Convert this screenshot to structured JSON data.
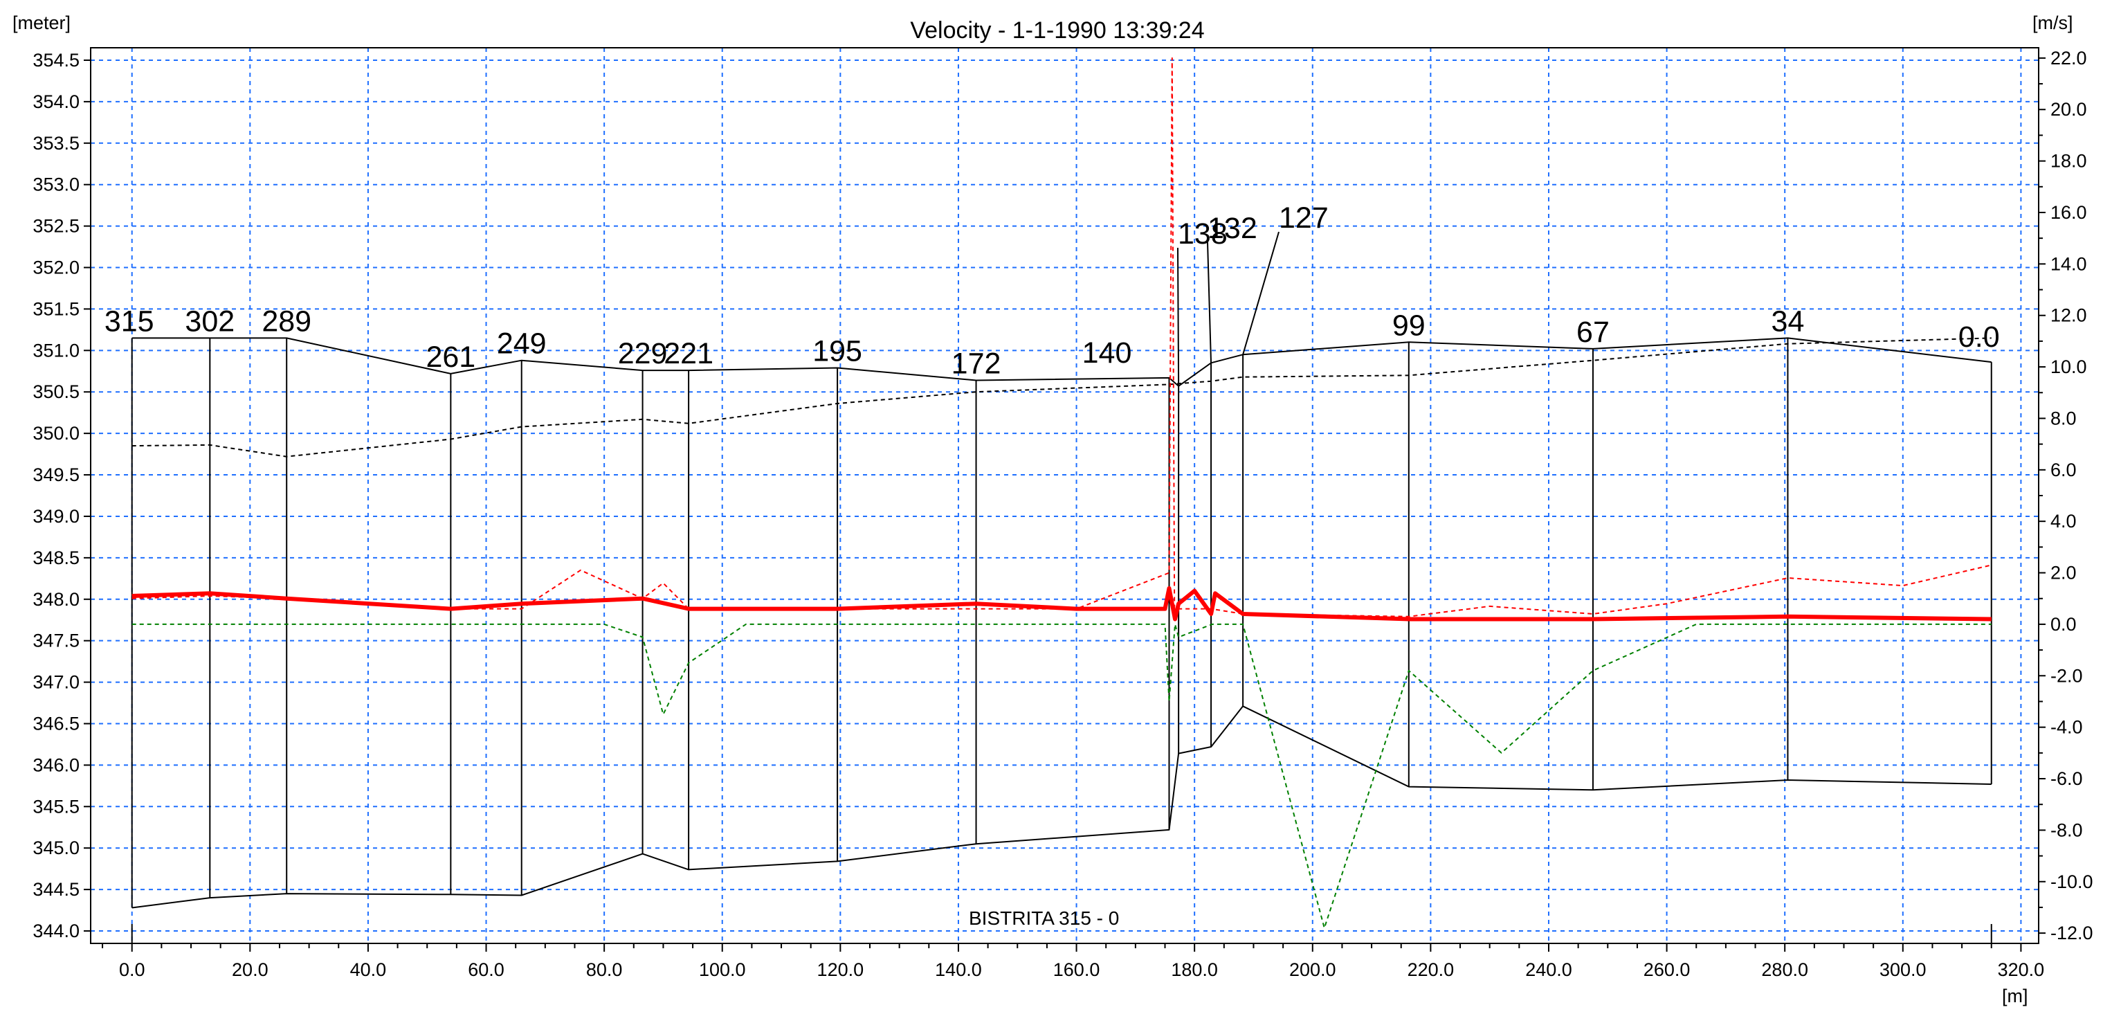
{
  "chart_data": {
    "type": "line",
    "title": "Velocity - 1-1-1990 13:39:24",
    "ylabel_left": "[meter]",
    "ylabel_right": "[m/s]",
    "xlabel": "[m]",
    "river_label": "BISTRITA  315 - 0",
    "xlim": [
      -7,
      323
    ],
    "ylim_left": [
      343.85,
      354.65
    ],
    "ylim_right": [
      -12.4,
      22.4
    ],
    "x_ticks": [
      0,
      20,
      40,
      60,
      80,
      100,
      120,
      140,
      160,
      180,
      200,
      220,
      240,
      260,
      280,
      300,
      320
    ],
    "x_tick_labels": [
      "0.0",
      "20.0",
      "40.0",
      "60.0",
      "80.0",
      "100.0",
      "120.0",
      "140.0",
      "160.0",
      "180.0",
      "200.0",
      "220.0",
      "240.0",
      "260.0",
      "280.0",
      "300.0",
      "320.0"
    ],
    "y_left_ticks": [
      344.0,
      344.5,
      345.0,
      345.5,
      346.0,
      346.5,
      347.0,
      347.5,
      348.0,
      348.5,
      349.0,
      349.5,
      350.0,
      350.5,
      351.0,
      351.5,
      352.0,
      352.5,
      353.0,
      353.5,
      354.0,
      354.5
    ],
    "y_left_tick_labels": [
      "344.0",
      "344.5",
      "345.0",
      "345.5",
      "346.0",
      "346.5",
      "347.0",
      "347.5",
      "348.0",
      "348.5",
      "349.0",
      "349.5",
      "350.0",
      "350.5",
      "351.0",
      "351.5",
      "352.0",
      "352.5",
      "353.0",
      "353.5",
      "354.0",
      "354.5"
    ],
    "y_right_ticks": [
      -12,
      -10,
      -8,
      -6,
      -4,
      -2,
      0,
      2,
      4,
      6,
      8,
      10,
      12,
      14,
      16,
      18,
      20,
      22
    ],
    "y_right_tick_labels": [
      "-12.0",
      "-10.0",
      "-8.0",
      "-6.0",
      "-4.0",
      "-2.0",
      "0.0",
      "2.0",
      "4.0",
      "6.0",
      "8.0",
      "10.0",
      "12.0",
      "14.0",
      "16.0",
      "18.0",
      "20.0",
      "22.0"
    ],
    "grid": true,
    "cross_sections": [
      {
        "label": "315",
        "x": 0,
        "top": 351.15,
        "bottom": 344.28
      },
      {
        "label": "302",
        "x": 13.2,
        "top": 351.15,
        "bottom": 344.4
      },
      {
        "label": "289",
        "x": 26.2,
        "top": 351.15,
        "bottom": 344.45
      },
      {
        "label": "261",
        "x": 54,
        "top": 350.72,
        "bottom": 344.44
      },
      {
        "label": "249",
        "x": 66,
        "top": 350.88,
        "bottom": 344.43
      },
      {
        "label": "229",
        "x": 86.5,
        "top": 350.76,
        "bottom": 344.93
      },
      {
        "label": "221",
        "x": 94.3,
        "top": 350.76,
        "bottom": 344.74
      },
      {
        "label": "195",
        "x": 119.5,
        "top": 350.79,
        "bottom": 344.84
      },
      {
        "label": "172",
        "x": 143,
        "top": 350.64,
        "bottom": 345.05
      },
      {
        "label": "140",
        "x": 175.7,
        "top": 350.67,
        "bottom": 345.22
      },
      {
        "label": "138",
        "x": 177.3,
        "top": 350.57,
        "bottom": 346.14
      },
      {
        "label": "132",
        "x": 182.8,
        "top": 350.85,
        "bottom": 346.22
      },
      {
        "label": "127",
        "x": 188.2,
        "top": 350.95,
        "bottom": 346.71
      },
      {
        "label": "99",
        "x": 216.3,
        "top": 351.1,
        "bottom": 345.74
      },
      {
        "label": "67",
        "x": 247.5,
        "top": 351.02,
        "bottom": 345.7
      },
      {
        "label": "34",
        "x": 280.5,
        "top": 351.15,
        "bottom": 345.82
      },
      {
        "label": "0.0",
        "x": 315,
        "top": 350.86,
        "bottom": 345.77
      }
    ],
    "series": [
      {
        "name": "bank_level",
        "axis": "left",
        "color": "#000000",
        "style": "solid",
        "x": [
          0,
          26.2,
          54,
          66,
          86.5,
          94.3,
          119.5,
          143,
          175.7,
          177.3,
          182.8,
          188.2,
          216.3,
          247.5,
          280.5,
          315
        ],
        "y": [
          351.15,
          351.15,
          350.72,
          350.88,
          350.76,
          350.76,
          350.79,
          350.64,
          350.67,
          350.57,
          350.85,
          350.95,
          351.1,
          351.02,
          351.15,
          350.86
        ]
      },
      {
        "name": "bed_level",
        "axis": "left",
        "color": "#000000",
        "style": "solid",
        "x": [
          0,
          13.2,
          26.2,
          54,
          66,
          86.5,
          94.3,
          119.5,
          143,
          175.7,
          177.3,
          182.8,
          188.2,
          216.3,
          247.5,
          280.5,
          315
        ],
        "y": [
          344.28,
          344.4,
          344.45,
          344.44,
          344.43,
          344.93,
          344.74,
          344.84,
          345.05,
          345.22,
          346.14,
          346.22,
          346.71,
          345.74,
          345.7,
          345.82,
          345.77
        ]
      },
      {
        "name": "water_level",
        "axis": "left",
        "color": "#000000",
        "style": "dashed",
        "x": [
          0,
          13.2,
          26.2,
          54,
          66,
          86.5,
          94.3,
          119.5,
          143,
          175.7,
          177.3,
          182.8,
          188.2,
          216.3,
          247.5,
          280.5,
          315
        ],
        "y": [
          349.85,
          349.86,
          349.72,
          349.93,
          350.08,
          350.17,
          350.12,
          350.36,
          350.5,
          350.59,
          350.6,
          350.63,
          350.68,
          350.7,
          350.88,
          351.08,
          351.15
        ]
      },
      {
        "name": "velocity_max",
        "axis": "right",
        "color": "#ff0000",
        "style": "dashed",
        "x": [
          0,
          13.2,
          26.2,
          54,
          66,
          76,
          86.5,
          90,
          94.3,
          119.5,
          143,
          160,
          175.7,
          176.2,
          176.6,
          177.3,
          182.8,
          188.2,
          216.3,
          230,
          247.5,
          260,
          280.5,
          300,
          315
        ],
        "y": [
          1.0,
          1.1,
          1.0,
          0.6,
          0.6,
          2.1,
          1.0,
          1.6,
          0.6,
          0.6,
          0.6,
          0.6,
          2.0,
          22.0,
          0.6,
          0.6,
          0.6,
          0.4,
          0.3,
          0.7,
          0.4,
          0.8,
          1.8,
          1.5,
          2.3
        ]
      },
      {
        "name": "velocity_mean",
        "axis": "right",
        "color": "#ff0000",
        "style": "thick",
        "x": [
          0,
          13.2,
          26.2,
          54,
          66,
          86.5,
          94.3,
          119.5,
          143,
          160,
          175.0,
          175.7,
          176.7,
          177.3,
          180.0,
          182.8,
          183.5,
          188.2,
          216.3,
          247.5,
          280.5,
          315
        ],
        "y": [
          1.1,
          1.2,
          1.0,
          0.6,
          0.8,
          1.0,
          0.6,
          0.6,
          0.8,
          0.6,
          0.6,
          1.4,
          0.2,
          0.8,
          1.3,
          0.4,
          1.2,
          0.4,
          0.2,
          0.2,
          0.3,
          0.2
        ]
      },
      {
        "name": "velocity_min",
        "axis": "right",
        "color": "#008000",
        "style": "dashed",
        "x": [
          0,
          13.2,
          26.2,
          54,
          66,
          80,
          86.5,
          90,
          94.3,
          104,
          119.5,
          143,
          175.0,
          175.7,
          176.7,
          177.3,
          183,
          188.2,
          202,
          216.3,
          232,
          247.5,
          265,
          280.5,
          315
        ],
        "y": [
          0.0,
          0.0,
          0.0,
          0.0,
          0.0,
          0.0,
          -0.5,
          -3.5,
          -1.5,
          0.0,
          0.0,
          0.0,
          0.0,
          -3.0,
          0.0,
          -0.5,
          0.0,
          0.0,
          -11.8,
          -1.8,
          -5.0,
          -1.8,
          0.0,
          0.0,
          0.0
        ]
      }
    ]
  }
}
